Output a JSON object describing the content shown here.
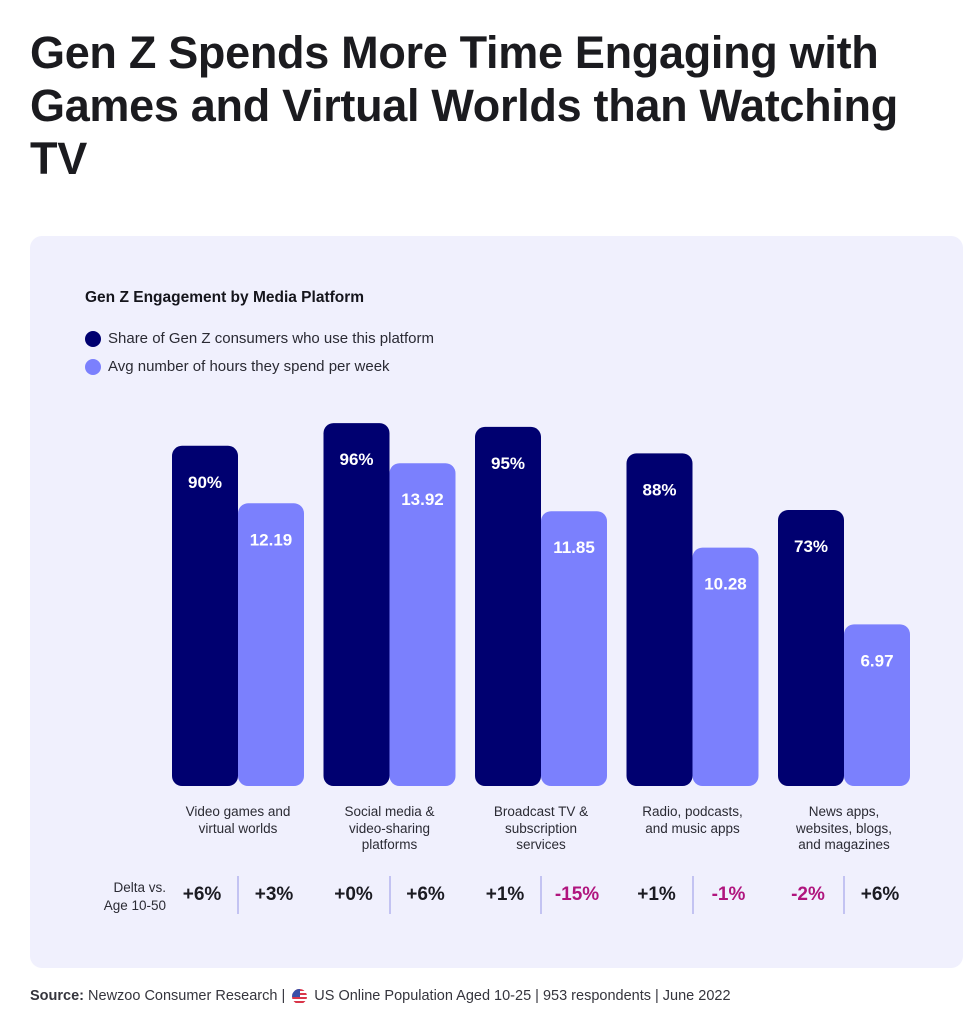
{
  "title": "Gen Z Spends More Time Engaging with Games and Virtual Worlds than Watching TV",
  "colors": {
    "share": "#000070",
    "hours": "#7b80fd",
    "positive_delta": "#1b1b22",
    "negative_delta": "#b0157e",
    "panel_bg": "#f0f0fd"
  },
  "chart_data": {
    "type": "bar",
    "title": "Gen Z Engagement by Media Platform",
    "xlabel": "",
    "ylabel": "",
    "legend_position": "top-left",
    "grid": false,
    "categories": [
      "Video games and virtual worlds",
      "Social media & video-sharing platforms",
      "Broadcast TV & subscription services",
      "Radio, podcasts, and music apps",
      "News apps, websites, blogs, and magazines"
    ],
    "category_lines": [
      [
        "Video games and",
        "virtual worlds"
      ],
      [
        "Social media &",
        "video-sharing",
        "platforms"
      ],
      [
        "Broadcast TV &",
        "subscription",
        "services"
      ],
      [
        "Radio, podcasts,",
        "and music apps"
      ],
      [
        "News apps,",
        "websites, blogs,",
        "and magazines"
      ]
    ],
    "series": [
      {
        "name": "Share of Gen Z consumers who use this platform",
        "values": [
          90,
          96,
          95,
          88,
          73
        ],
        "labels": [
          "90%",
          "96%",
          "95%",
          "88%",
          "73%"
        ],
        "unit": "%",
        "ylim": [
          0,
          100
        ]
      },
      {
        "name": "Avg number of hours they spend per week",
        "values": [
          12.19,
          13.92,
          11.85,
          10.28,
          6.97
        ],
        "labels": [
          "12.19",
          "13.92",
          "11.85",
          "10.28",
          "6.97"
        ],
        "unit": "hours",
        "ylim": [
          0,
          16.3
        ]
      }
    ],
    "delta": {
      "label_lines": [
        "Delta vs.",
        "Age 10-50"
      ],
      "share": [
        "+6%",
        "+0%",
        "+1%",
        "+1%",
        "-2%"
      ],
      "hours": [
        "+3%",
        "+6%",
        "-15%",
        "-1%",
        "+6%"
      ]
    }
  },
  "source": {
    "label": "Source:",
    "text_before_flag": " Newzoo Consumer Research | ",
    "flag_icon": "us-flag-icon",
    "text_after_flag": " US Online Population Aged 10-25 | 953 respondents | June 2022"
  }
}
